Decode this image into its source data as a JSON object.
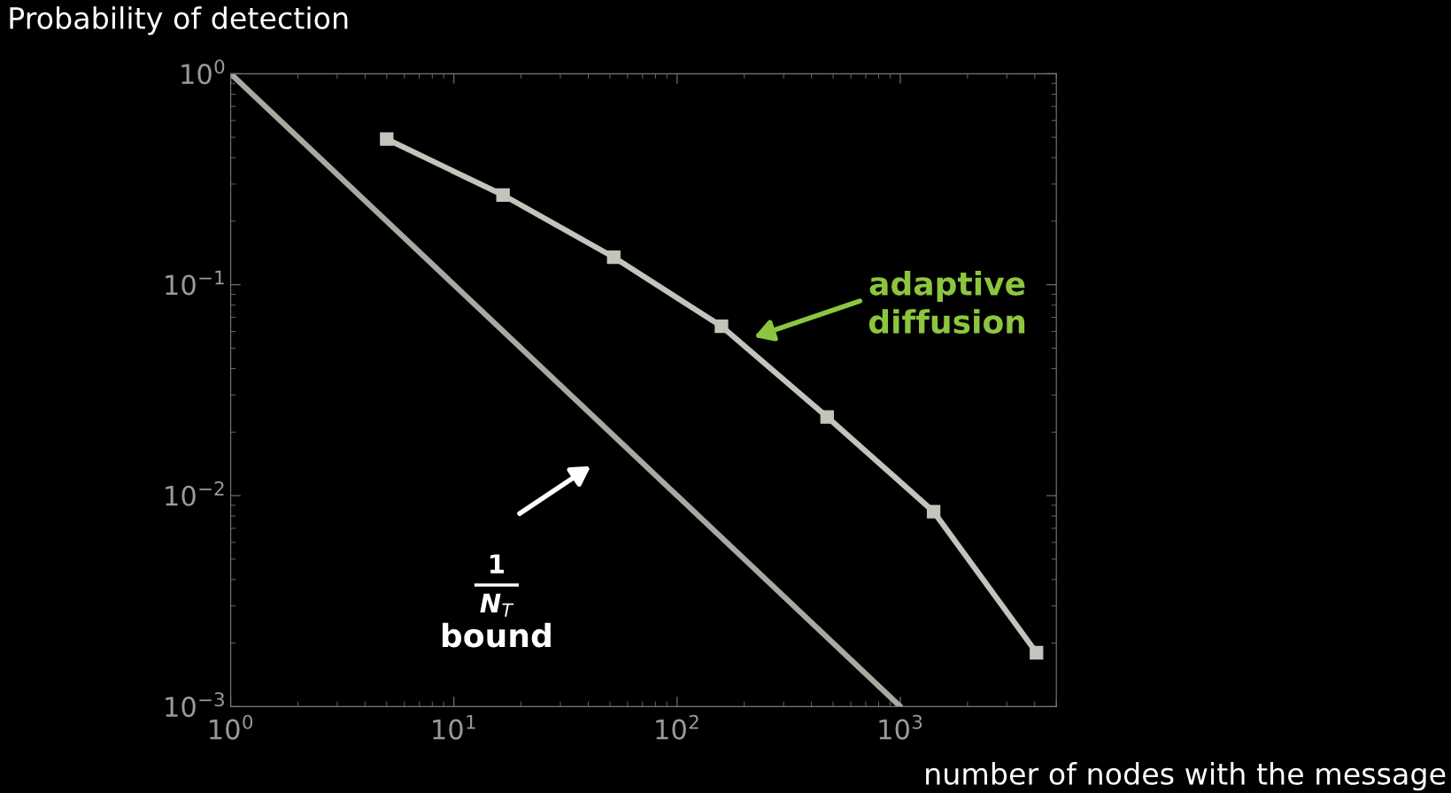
{
  "chart_data": {
    "type": "line",
    "ylabel": "Probability of detection",
    "xlabel": "number of nodes with the message",
    "series": [
      {
        "color": "#a9a9a2",
        "marker": "none",
        "x": [
          1,
          1000
        ],
        "values": [
          1,
          0.001
        ]
      },
      {
        "color": "#c4c4bc",
        "marker": "square",
        "x": [
          5,
          16.6,
          52,
          158,
          470,
          1410,
          4075
        ],
        "values": [
          0.49,
          0.266,
          0.135,
          0.0635,
          0.0236,
          0.0084,
          0.0018
        ]
      }
    ],
    "log": "xy",
    "xlim": [
      1,
      5000
    ],
    "ylim": [
      0.001,
      1
    ],
    "xticks": [
      {
        "value": 1,
        "label": "10$^{0}$"
      },
      {
        "value": 10,
        "label": "10$^{1}$"
      },
      {
        "value": 100,
        "label": "10$^{2}$"
      },
      {
        "value": 1000,
        "label": "10$^{3}$"
      }
    ],
    "yticks": [
      {
        "value": 0.001,
        "label": "10$^{−3}$"
      },
      {
        "value": 0.01,
        "label": "10$^{−2}$"
      },
      {
        "value": 0.1,
        "label": "10$^{−1}$"
      },
      {
        "value": 1,
        "label": "10$^{0}$"
      }
    ],
    "grid": false,
    "legend": false,
    "annotations": [
      "adaptive\ndiffusion",
      "bound",
      "1",
      "N$_{T}$"
    ]
  }
}
